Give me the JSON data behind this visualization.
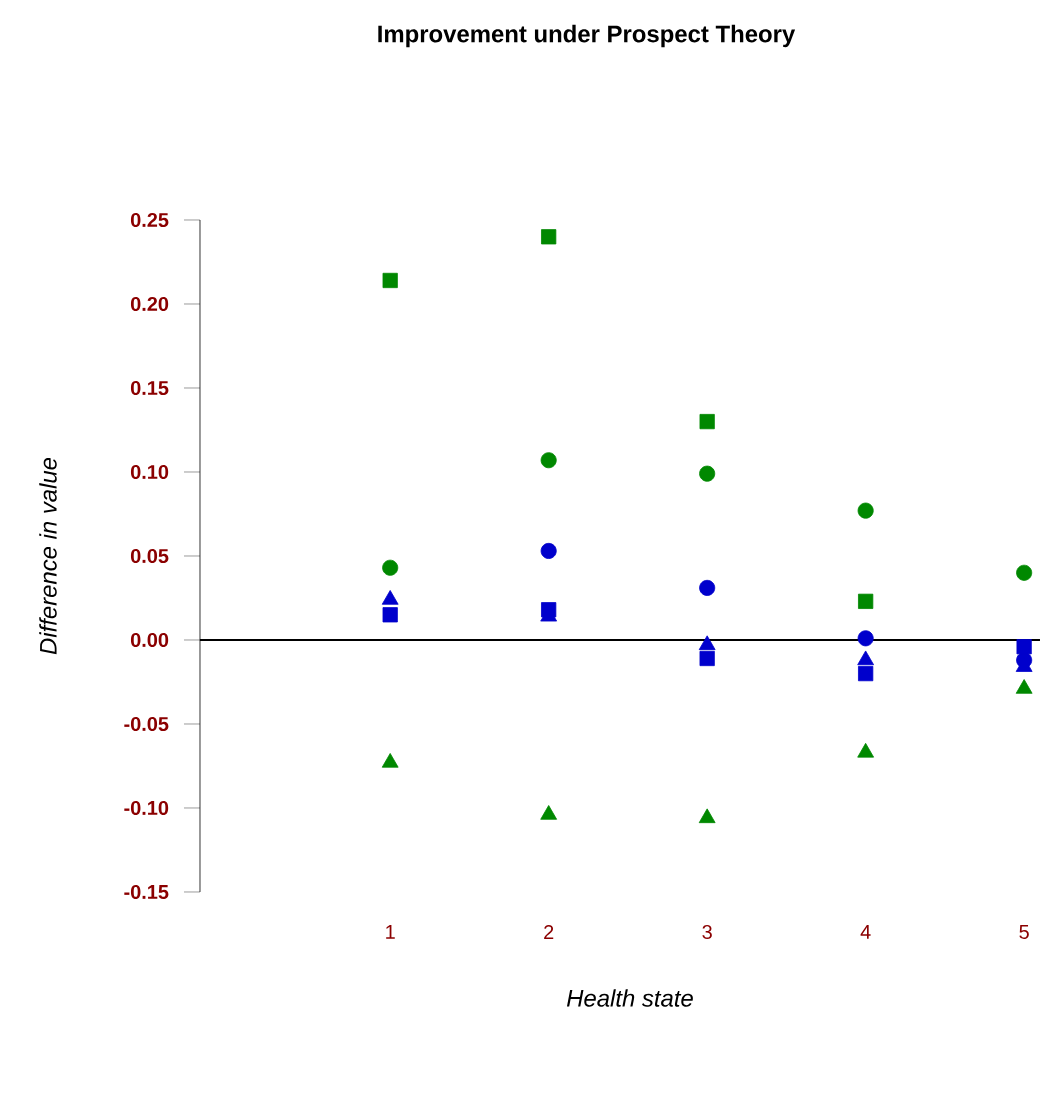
{
  "chart_data": {
    "type": "scatter",
    "title": "Improvement under Prospect Theory",
    "xlabel": "Health state",
    "ylabel": "Difference in value",
    "categories": [
      "1",
      "2",
      "3",
      "4",
      "5"
    ],
    "ylim": [
      -0.15,
      0.25
    ],
    "yticks": [
      -0.15,
      {
        "value": -0.1,
        "label": "-0.10"
      },
      -0.05,
      {
        "value": 0,
        "label": "0.00"
      },
      0.05,
      {
        "value": 0.1,
        "label": "0.10"
      },
      0.15,
      {
        "value": 0.2,
        "label": "0.20"
      },
      0.25
    ],
    "grid": false,
    "ref_lines": [
      {
        "axis": "y",
        "value": 0,
        "color": "#000000"
      }
    ],
    "series": [
      {
        "color": "#008800",
        "marker": "square",
        "values": [
          0.214,
          0.24,
          0.13,
          0.023,
          null
        ]
      },
      {
        "color": "#008800",
        "marker": "circle",
        "values": [
          0.043,
          0.107,
          0.099,
          0.077,
          0.04
        ]
      },
      {
        "color": "#008800",
        "marker": "triangle",
        "values": [
          -0.073,
          -0.104,
          -0.106,
          -0.067,
          -0.029
        ]
      },
      {
        "color": "#0000cc",
        "marker": "circle",
        "values": [
          null,
          0.053,
          0.031,
          0.001,
          -0.012
        ]
      },
      {
        "color": "#0000cc",
        "marker": "square",
        "values": [
          0.015,
          0.018,
          -0.011,
          -0.02,
          -0.004
        ]
      },
      {
        "color": "#0000cc",
        "marker": "triangle",
        "values": [
          0.024,
          0.014,
          -0.003,
          -0.012,
          -0.016
        ]
      }
    ]
  }
}
